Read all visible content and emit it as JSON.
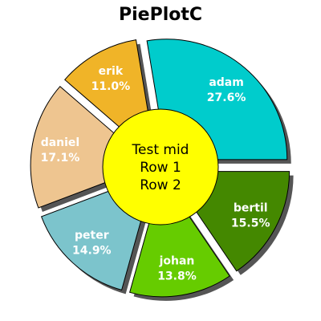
{
  "chart_data": {
    "type": "pie",
    "title": "PiePlotC",
    "center_text": [
      "Test mid",
      "Row 1",
      "Row 2"
    ],
    "center_color": "#ffff00",
    "slices": [
      {
        "label": "adam",
        "percent": "27.6%",
        "value": 27.6,
        "color": "#00cccc"
      },
      {
        "label": "erik",
        "percent": "11.0%",
        "value": 11.0,
        "color": "#f0b428"
      },
      {
        "label": "daniel",
        "percent": "17.1%",
        "value": 17.1,
        "color": "#eec590"
      },
      {
        "label": "peter",
        "percent": "14.9%",
        "value": 14.9,
        "color": "#7cc4cc"
      },
      {
        "label": "johan",
        "percent": "13.8%",
        "value": 13.8,
        "color": "#66cc00"
      },
      {
        "label": "bertil",
        "percent": "15.5%",
        "value": 15.5,
        "color": "#448800"
      }
    ],
    "exploded": true,
    "shadow": true
  }
}
